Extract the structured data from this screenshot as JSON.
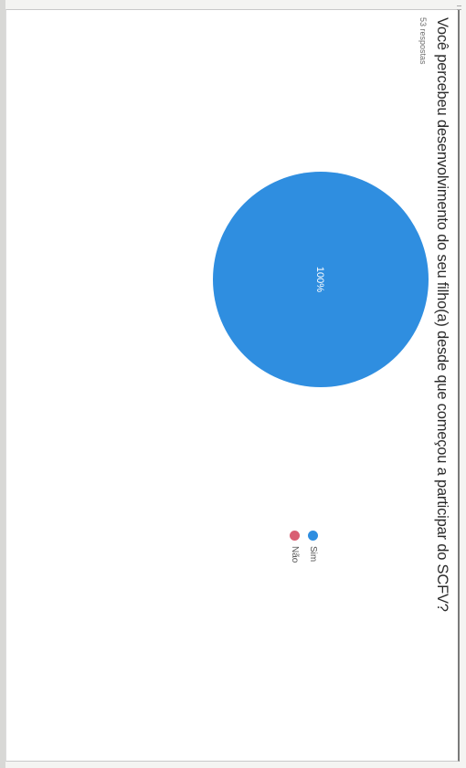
{
  "question": "Você percebeu desenvolvimento do seu filho(a) desde que começou a participar do SCFV?",
  "responses": "53 respostas",
  "chart_data": {
    "type": "pie",
    "title": "Você percebeu desenvolvimento do seu filho(a) desde que começou a participar do SCFV?",
    "series": [
      {
        "name": "Sim",
        "value": 100,
        "color": "#2f8ee0"
      },
      {
        "name": "Não",
        "value": 0,
        "color": "#d95f73"
      }
    ],
    "slice_labels": [
      "100%"
    ],
    "legend": "right"
  }
}
